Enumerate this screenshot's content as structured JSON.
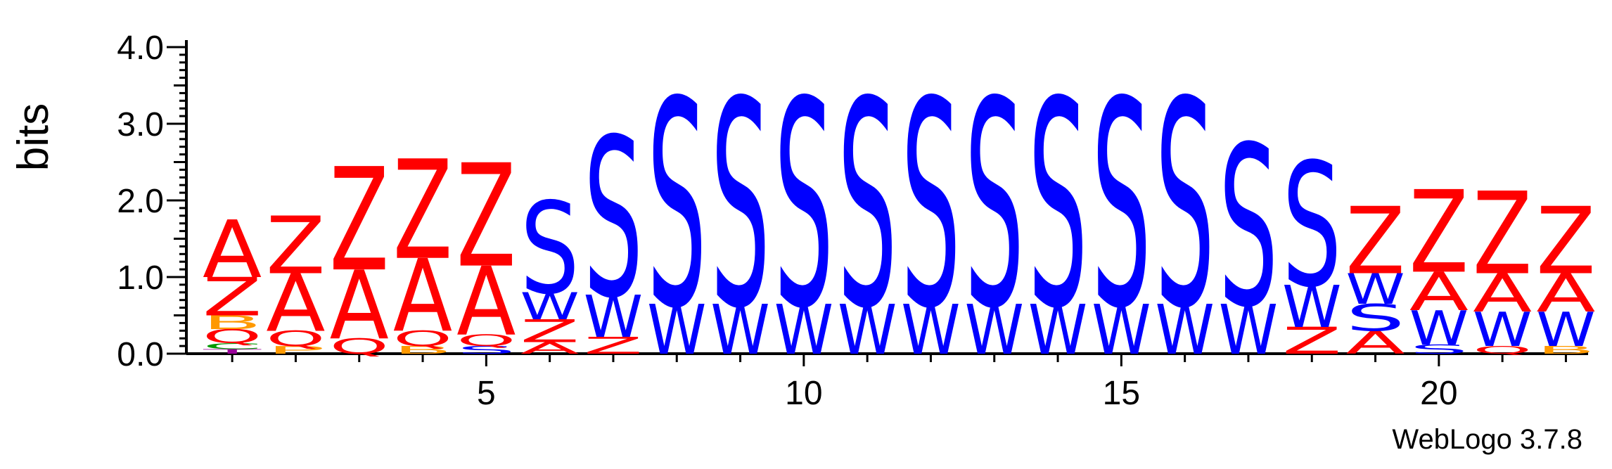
{
  "chart_data": {
    "type": "sequence-logo",
    "title": "",
    "xlabel": "",
    "ylabel": "bits",
    "ylim": [
      0,
      4.0
    ],
    "yticks": [
      "0.0",
      "1.0",
      "2.0",
      "3.0",
      "4.0"
    ],
    "xticks": [
      5,
      10,
      15,
      20
    ],
    "credit": "WebLogo 3.7.8",
    "colors": {
      "A": "#ff0000",
      "Z": "#ff0000",
      "S": "#0000ff",
      "W": "#0000ff",
      "Q": "#ff0000",
      "B": "#ff9900",
      "C": "#009900",
      "P": "#ff9900",
      "T": "#990099"
    },
    "positions": [
      {
        "pos": 1,
        "stack": [
          [
            "T",
            0.06
          ],
          [
            "C",
            0.08
          ],
          [
            "Q",
            0.18
          ],
          [
            "B",
            0.18
          ],
          [
            "Z",
            0.5
          ],
          [
            "A",
            0.75
          ]
        ]
      },
      {
        "pos": 2,
        "stack": [
          [
            "P",
            0.1
          ],
          [
            "Q",
            0.2
          ],
          [
            "A",
            0.75
          ],
          [
            "Z",
            0.75
          ]
        ]
      },
      {
        "pos": 3,
        "stack": [
          [
            "Q",
            0.2
          ],
          [
            "A",
            0.9
          ],
          [
            "Z",
            1.35
          ]
        ]
      },
      {
        "pos": 4,
        "stack": [
          [
            "B",
            0.1
          ],
          [
            "Q",
            0.2
          ],
          [
            "A",
            0.95
          ],
          [
            "Z",
            1.3
          ]
        ]
      },
      {
        "pos": 5,
        "stack": [
          [
            "S",
            0.1
          ],
          [
            "Q",
            0.15
          ],
          [
            "A",
            0.9
          ],
          [
            "Z",
            1.35
          ]
        ]
      },
      {
        "pos": 6,
        "stack": [
          [
            "A",
            0.15
          ],
          [
            "Z",
            0.3
          ],
          [
            "W",
            0.35
          ],
          [
            "S",
            1.2
          ]
        ]
      },
      {
        "pos": 7,
        "stack": [
          [
            "Z",
            0.22
          ],
          [
            "W",
            0.55
          ],
          [
            "S",
            2.08
          ]
        ]
      },
      {
        "pos": 8,
        "stack": [
          [
            "W",
            0.65
          ],
          [
            "S",
            2.7
          ]
        ]
      },
      {
        "pos": 9,
        "stack": [
          [
            "W",
            0.65
          ],
          [
            "S",
            2.7
          ]
        ]
      },
      {
        "pos": 10,
        "stack": [
          [
            "W",
            0.65
          ],
          [
            "S",
            2.7
          ]
        ]
      },
      {
        "pos": 11,
        "stack": [
          [
            "W",
            0.65
          ],
          [
            "S",
            2.7
          ]
        ]
      },
      {
        "pos": 12,
        "stack": [
          [
            "W",
            0.65
          ],
          [
            "S",
            2.7
          ]
        ]
      },
      {
        "pos": 13,
        "stack": [
          [
            "W",
            0.65
          ],
          [
            "S",
            2.7
          ]
        ]
      },
      {
        "pos": 14,
        "stack": [
          [
            "W",
            0.65
          ],
          [
            "S",
            2.7
          ]
        ]
      },
      {
        "pos": 15,
        "stack": [
          [
            "W",
            0.65
          ],
          [
            "S",
            2.7
          ]
        ]
      },
      {
        "pos": 16,
        "stack": [
          [
            "W",
            0.65
          ],
          [
            "S",
            2.7
          ]
        ]
      },
      {
        "pos": 17,
        "stack": [
          [
            "W",
            0.65
          ],
          [
            "S",
            2.1
          ]
        ]
      },
      {
        "pos": 18,
        "stack": [
          [
            "Z",
            0.35
          ],
          [
            "W",
            0.55
          ],
          [
            "S",
            1.62
          ]
        ]
      },
      {
        "pos": 19,
        "stack": [
          [
            "A",
            0.3
          ],
          [
            "S",
            0.35
          ],
          [
            "W",
            0.4
          ],
          [
            "Z",
            0.88
          ]
        ]
      },
      {
        "pos": 20,
        "stack": [
          [
            "S",
            0.12
          ],
          [
            "W",
            0.45
          ],
          [
            "A",
            0.5
          ],
          [
            "Z",
            1.08
          ]
        ]
      },
      {
        "pos": 21,
        "stack": [
          [
            "Q",
            0.1
          ],
          [
            "W",
            0.45
          ],
          [
            "A",
            0.5
          ],
          [
            "Z",
            1.08
          ]
        ]
      },
      {
        "pos": 22,
        "stack": [
          [
            "B",
            0.1
          ],
          [
            "W",
            0.45
          ],
          [
            "A",
            0.5
          ],
          [
            "Z",
            0.88
          ]
        ]
      }
    ]
  }
}
